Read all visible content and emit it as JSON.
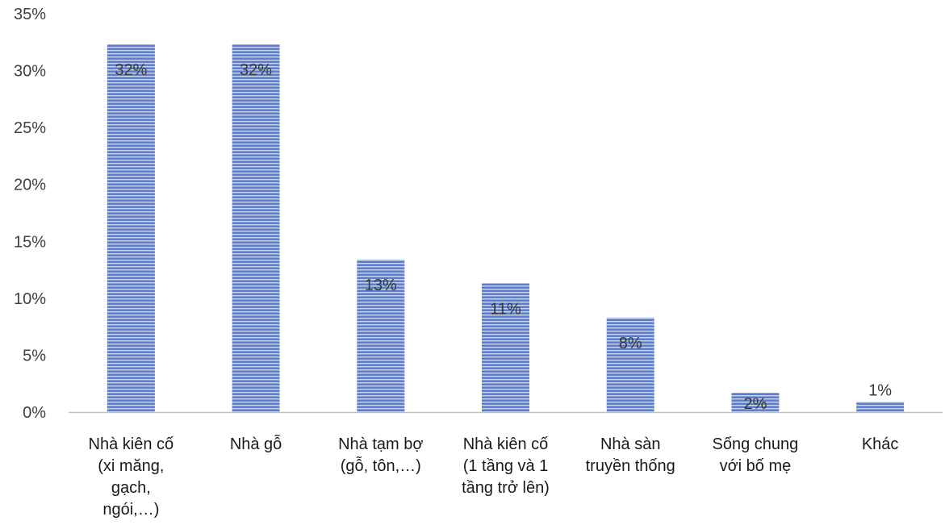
{
  "chart_data": {
    "type": "bar",
    "title": "",
    "xlabel": "",
    "ylabel": "",
    "categories": [
      [
        "Nhà kiên cố",
        "(xi măng,",
        "gạch,",
        "ngói,…)"
      ],
      [
        "Nhà gỗ"
      ],
      [
        "Nhà tạm bợ",
        "(gỗ, tôn,…)"
      ],
      [
        "Nhà kiên cố",
        "(1 tầng và 1",
        "tầng trở lên)"
      ],
      [
        "Nhà sàn",
        "truyền thống"
      ],
      [
        "Sống chung",
        "với bố mẹ"
      ],
      [
        "Khác"
      ]
    ],
    "values": [
      32.3,
      32.3,
      13.4,
      11.3,
      8.3,
      1.7,
      0.9
    ],
    "data_labels": [
      "32%",
      "32%",
      "13%",
      "11%",
      "8%",
      "2%",
      "1%"
    ],
    "yticks": [
      "0%",
      "5%",
      "10%",
      "15%",
      "20%",
      "25%",
      "30%",
      "35%"
    ],
    "ylim": [
      0,
      35
    ],
    "grid": false,
    "legend": "none",
    "colors": {
      "bar_fill": "#5b7fd0",
      "bar_stripe": "#c9d6f2",
      "axis": "#bfbfbf"
    }
  }
}
